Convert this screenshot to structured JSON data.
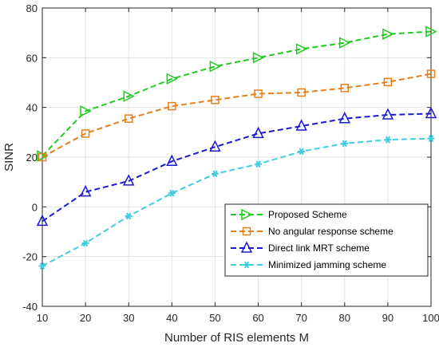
{
  "chart_data": {
    "type": "line",
    "title": "",
    "xlabel": "Number of RIS elements M",
    "ylabel": "SINR",
    "xlim": [
      10,
      100
    ],
    "ylim": [
      -40,
      80
    ],
    "xticks": [
      10,
      20,
      30,
      40,
      50,
      60,
      70,
      80,
      90,
      100
    ],
    "yticks": [
      -40,
      -20,
      0,
      20,
      40,
      60,
      80
    ],
    "grid": true,
    "legend_position": "bottom-right",
    "x": [
      10,
      20,
      30,
      40,
      50,
      60,
      70,
      80,
      90,
      100
    ],
    "series": [
      {
        "name": "Proposed Scheme",
        "color": "#1fcc1f",
        "marker": "triangle-right",
        "values": [
          20.5,
          38.5,
          44.5,
          51.5,
          56.5,
          60,
          63.5,
          66,
          69.5,
          70.5
        ]
      },
      {
        "name": "No angular response scheme",
        "color": "#e8801a",
        "marker": "square",
        "values": [
          20,
          29.5,
          35.5,
          40.5,
          43,
          45.5,
          46,
          47.8,
          50.2,
          53.5
        ]
      },
      {
        "name": "Direct link MRT scheme",
        "color": "#1a1ad6",
        "marker": "triangle-up",
        "values": [
          -5.8,
          6,
          10.4,
          18.3,
          24.1,
          29.5,
          32.5,
          35.5,
          37,
          37.5
        ]
      },
      {
        "name": "Minimized jamming scheme",
        "color": "#3fcde0",
        "marker": "asterisk",
        "values": [
          -23.8,
          -14.6,
          -3.7,
          5.5,
          13.3,
          17.2,
          22.3,
          25.5,
          27,
          27.5
        ]
      }
    ]
  }
}
